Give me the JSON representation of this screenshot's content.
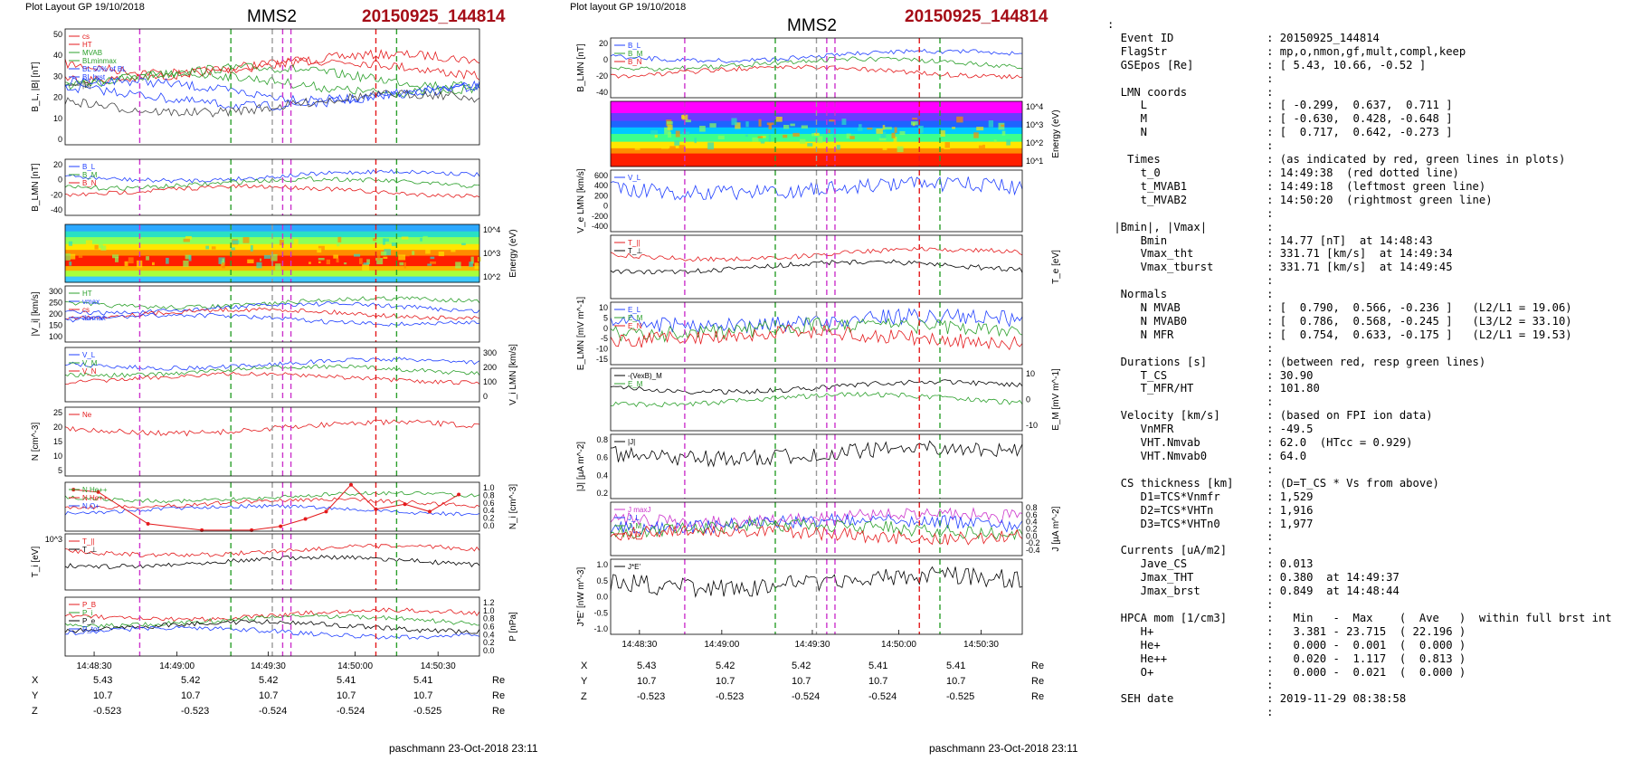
{
  "left": {
    "header": "Plot Layout GP 19/10/2018",
    "sc": "MMS2",
    "event": "20150925_144814",
    "footer": "paschmann 23-Oct-2018 23:11",
    "time_ticks": [
      "14:48:30",
      "14:49:00",
      "14:49:30",
      "14:50:00",
      "14:50:30"
    ],
    "position": {
      "rows": [
        {
          "label": "X",
          "values": [
            "5.43",
            "5.42",
            "5.42",
            "5.41",
            "5.41"
          ],
          "unit": "Re"
        },
        {
          "label": "Y",
          "values": [
            "10.7",
            "10.7",
            "10.7",
            "10.7",
            "10.7"
          ],
          "unit": "Re"
        },
        {
          "label": "Z",
          "values": [
            "-0.523",
            "-0.523",
            "-0.524",
            "-0.524",
            "-0.525"
          ],
          "unit": "Re"
        }
      ]
    },
    "panels": [
      {
        "id": "bl",
        "ylabel": "B_L, |B| [nT]",
        "yticks": [
          "50",
          "40",
          "30",
          "20",
          "10",
          "0"
        ],
        "legend": [
          {
            "text": "cs",
            "color": "#e41a1c"
          },
          {
            "text": "HT",
            "color": "#e41a1c"
          },
          {
            "text": "MVAB",
            "color": "#2ca02c"
          },
          {
            "text": "BLminmax",
            "color": "#2ca02c"
          },
          {
            "text": "BL 50% of BL",
            "color": "#1f3fff"
          },
          {
            "text": "BL brst",
            "color": "#1f3fff"
          },
          {
            "text": "|B|",
            "color": "#444"
          }
        ]
      },
      {
        "id": "blmn",
        "ylabel": "B_LMN [nT]",
        "yticks": [
          "20",
          "0",
          "-20",
          "-40"
        ],
        "legend": [
          {
            "text": "B_L",
            "color": "#1f3fff"
          },
          {
            "text": "B_M",
            "color": "#2ca02c"
          },
          {
            "text": "B_N",
            "color": "#e41a1c"
          }
        ]
      },
      {
        "id": "spec",
        "ylabel": "Energy (eV)",
        "yticks": [
          "10^4",
          "10^3",
          "10^2"
        ]
      },
      {
        "id": "vi",
        "ylabel": "|V_i| [km/s]",
        "yticks": [
          "300",
          "250",
          "200",
          "150",
          "100"
        ],
        "legend": [
          {
            "text": "HT",
            "color": "#2ca02c"
          },
          {
            "text": "vmax",
            "color": "#1f3fff"
          },
          {
            "text": "cs",
            "color": "#e41a1c"
          },
          {
            "text": "tbvmax",
            "color": "#1f3fff"
          }
        ]
      },
      {
        "id": "vlmn",
        "ylabel": "V_i LMN [km/s]",
        "yticks": [
          "300",
          "200",
          "100",
          "0"
        ],
        "legend": [
          {
            "text": "V_L",
            "color": "#1f3fff"
          },
          {
            "text": "V_M",
            "color": "#2ca02c"
          },
          {
            "text": "V_N",
            "color": "#e41a1c"
          }
        ]
      },
      {
        "id": "n",
        "ylabel": "N [cm^-3]",
        "yticks": [
          "25",
          "20",
          "15",
          "10",
          "5"
        ],
        "legend": [
          {
            "text": "Ne",
            "color": "#e41a1c"
          }
        ]
      },
      {
        "id": "ni",
        "ylabel": "N_i [cm^-3]",
        "yticks": [
          "1.0",
          "0.8",
          "0.6",
          "0.4",
          "0.2",
          "0.0"
        ],
        "legend": [
          {
            "text": "N He++",
            "color": "#2ca02c"
          },
          {
            "text": "N He++",
            "color": "#e41a1c"
          },
          {
            "text": "N O+",
            "color": "#1f3fff"
          }
        ]
      },
      {
        "id": "ti",
        "ylabel": "T_i [eV]",
        "yticks": [
          "10^3"
        ],
        "legend": [
          {
            "text": "T_||",
            "color": "#e41a1c"
          },
          {
            "text": "T_⊥",
            "color": "#000"
          }
        ]
      },
      {
        "id": "p",
        "ylabel": "P [nPa]",
        "yticks": [
          "1.2",
          "1.0",
          "0.8",
          "0.6",
          "0.4",
          "0.2",
          "0.0"
        ],
        "legend": [
          {
            "text": "P_B",
            "color": "#e41a1c"
          },
          {
            "text": "P_i",
            "color": "#2ca02c"
          },
          {
            "text": "P_e",
            "color": "#000"
          },
          {
            "text": "P_tot",
            "color": "#1f3fff"
          }
        ]
      }
    ]
  },
  "middle": {
    "header": "Plot layout GP 19/10/2018",
    "sc": "MMS2",
    "event": "20150925_144814",
    "footer": "paschmann 23-Oct-2018 23:11",
    "time_ticks": [
      "14:48:30",
      "14:49:00",
      "14:49:30",
      "14:50:00",
      "14:50:30"
    ],
    "position": {
      "rows": [
        {
          "label": "X",
          "values": [
            "5.43",
            "5.42",
            "5.42",
            "5.41",
            "5.41"
          ],
          "unit": "Re"
        },
        {
          "label": "Y",
          "values": [
            "10.7",
            "10.7",
            "10.7",
            "10.7",
            "10.7"
          ],
          "unit": "Re"
        },
        {
          "label": "Z",
          "values": [
            "-0.523",
            "-0.523",
            "-0.524",
            "-0.524",
            "-0.525"
          ],
          "unit": "Re"
        }
      ]
    },
    "panels": [
      {
        "id": "blmn",
        "ylabel": "B_LMN [nT]",
        "yticks": [
          "20",
          "0",
          "-20",
          "-40"
        ],
        "legend": [
          {
            "text": "B_L",
            "color": "#1f3fff"
          },
          {
            "text": "B_M",
            "color": "#2ca02c"
          },
          {
            "text": "B_N",
            "color": "#e41a1c"
          }
        ]
      },
      {
        "id": "espec",
        "ylabel": "Energy (eV)",
        "yticks": [
          "10^4",
          "10^3",
          "10^2",
          "10^1"
        ]
      },
      {
        "id": "ve",
        "ylabel": "V_e LMN [km/s]",
        "yticks": [
          "600",
          "400",
          "200",
          "0",
          "-200",
          "-400"
        ],
        "legend": [
          {
            "text": "V_L",
            "color": "#1f3fff"
          }
        ]
      },
      {
        "id": "te",
        "ylabel": "T_e [eV]",
        "yticks": [],
        "legend": [
          {
            "text": "T_||",
            "color": "#e41a1c"
          },
          {
            "text": "T_⊥",
            "color": "#000"
          }
        ]
      },
      {
        "id": "elmn",
        "ylabel": "E_LMN [mV m^-1]",
        "yticks": [
          "10",
          "5",
          "0",
          "-5",
          "-10",
          "-15"
        ],
        "legend": [
          {
            "text": "E_L",
            "color": "#1f3fff"
          },
          {
            "text": "E_M",
            "color": "#2ca02c"
          },
          {
            "text": "E_N",
            "color": "#e41a1c"
          }
        ]
      },
      {
        "id": "em",
        "ylabel": "E_M [mV m^-1]",
        "yticks": [
          "10",
          "0",
          "-10"
        ],
        "legend": [
          {
            "text": "-(VexB)_M",
            "color": "#000"
          },
          {
            "text": "E_M",
            "color": "#2ca02c"
          }
        ]
      },
      {
        "id": "j",
        "ylabel": "|J| [µA m^-2]",
        "yticks": [
          "0.8",
          "0.6",
          "0.4",
          "0.2"
        ],
        "legend": [
          {
            "text": "|J|",
            "color": "#000"
          }
        ]
      },
      {
        "id": "jlmn",
        "ylabel": "J [µA m^-2]",
        "yticks": [
          "0.8",
          "0.6",
          "0.4",
          "0.2",
          "0.0",
          "-0.2",
          "-0.4"
        ],
        "legend": [
          {
            "text": "J maxJ",
            "color": "#cc33cc"
          },
          {
            "text": "J_L",
            "color": "#1f3fff"
          },
          {
            "text": "J_M",
            "color": "#2ca02c"
          },
          {
            "text": "J_N",
            "color": "#e41a1c"
          }
        ]
      },
      {
        "id": "je",
        "ylabel": "J*E' [nW m^-3]",
        "yticks": [
          "1.0",
          "0.5",
          "0.0",
          "-0.5",
          "-1.0"
        ],
        "legend": [
          {
            "text": "J*E'",
            "color": "#000"
          }
        ]
      }
    ]
  },
  "summary_lines": [
    ":",
    "  Event ID              : 20150925_144814",
    "  FlagStr               : mp,o,nmon,gf,mult,compl,keep",
    "  GSEpos [Re]           : [ 5.43, 10.66, -0.52 ]",
    "                        :",
    "  LMN coords            :",
    "     L                  : [ -0.299,  0.637,  0.711 ]",
    "     M                  : [ -0.630,  0.428, -0.648 ]",
    "     N                  : [  0.717,  0.642, -0.273 ]",
    "                        :",
    "   Times                : (as indicated by red, green lines in plots)",
    "     t_0                : 14:49:38  (red dotted line)",
    "     t_MVAB1            : 14:49:18  (leftmost green line)",
    "     t_MVAB2            : 14:50:20  (rightmost green line)",
    "                        :",
    " |Bmin|, |Vmax|         :",
    "     Bmin               : 14.77 [nT]  at 14:48:43",
    "     Vmax_tht           : 331.71 [km/s]  at 14:49:34",
    "     Vmax_tburst        : 331.71 [km/s]  at 14:49:45",
    "                        :",
    "  Normals               :",
    "     N MVAB             : [  0.790,  0.566, -0.236 ]   (L2/L1 = 19.06)",
    "     N MVAB0            : [  0.786,  0.568, -0.245 ]   (L3/L2 = 33.10)",
    "     N MFR              : [  0.754,  0.633, -0.175 ]   (L2/L1 = 19.53)",
    "                        :",
    "  Durations [s]         : (between red, resp green lines)",
    "     T_CS               : 30.90",
    "     T_MFR/HT           : 101.80",
    "                        :",
    "  Velocity [km/s]       : (based on FPI ion data)",
    "     VnMFR              : -49.5",
    "     VHT.Nmvab          : 62.0  (HTcc = 0.929)",
    "     VHT.Nmvab0         : 64.0",
    "                        :",
    "  CS thickness [km]     : (D=T_CS * Vs from above)",
    "     D1=TCS*Vnmfr       : 1,529",
    "     D2=TCS*VHTn        : 1,916",
    "     D3=TCS*VHTn0       : 1,977",
    "                        :",
    "  Currents [uA/m2]      :",
    "     Jave_CS            : 0.013",
    "     Jmax_THT           : 0.380  at 14:49:37",
    "     Jmax_brst          : 0.849  at 14:48:44",
    "                        :",
    "  HPCA mom [1/cm3]      :   Min   -  Max    (  Ave   )  within full brst int",
    "     H+                 :   3.381 - 23.715  ( 22.196 )",
    "     He+                :   0.000 -  0.001  (  0.000 )",
    "     He++               :   0.020 -  1.117  (  0.813 )",
    "     O+                 :   0.000 -  0.021  (  0.000 )",
    "                        :",
    "  SEH date              : 2019-11-29 08:38:58",
    "                        :"
  ],
  "chart_data": [
    {
      "type": "line",
      "title": "MMS2 20150925_144814",
      "xlabel": "",
      "x_ticks": [
        "14:48:30",
        "14:49:00",
        "14:49:30",
        "14:50:00",
        "14:50:30"
      ],
      "panels": [
        "B_L, |B| [nT]",
        "B_LMN [nT]",
        "Energy (eV)",
        "|V_i| [km/s]",
        "V_i LMN [km/s]",
        "N [cm^-3]",
        "N_i [cm^-3]",
        "T_i [eV]",
        "P [nPa]"
      ]
    },
    {
      "type": "line",
      "title": "MMS2 20150925_144814",
      "xlabel": "",
      "x_ticks": [
        "14:48:30",
        "14:49:00",
        "14:49:30",
        "14:50:00",
        "14:50:30"
      ],
      "panels": [
        "B_LMN [nT]",
        "Energy (eV)",
        "V_e LMN [km/s]",
        "T_e [eV]",
        "E_LMN [mV m^-1]",
        "E_M [mV m^-1]",
        "|J| [µA m^-2]",
        "J [µA m^-2]",
        "J*E' [nW m^-3]"
      ]
    }
  ]
}
